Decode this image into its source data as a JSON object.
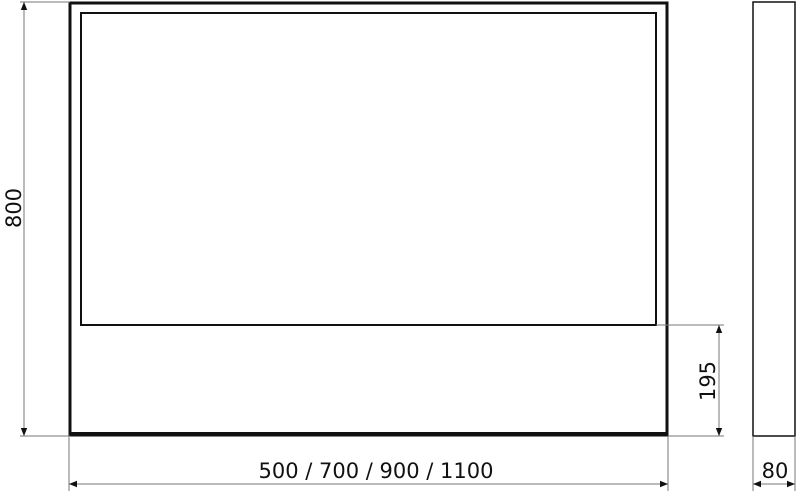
{
  "drawing": {
    "height_label": "800",
    "width_label": "500 / 700 / 900 / 1100",
    "lower_height_label": "195",
    "depth_label": "80"
  },
  "colors": {
    "line": "#111111",
    "dimension": "#777777"
  }
}
